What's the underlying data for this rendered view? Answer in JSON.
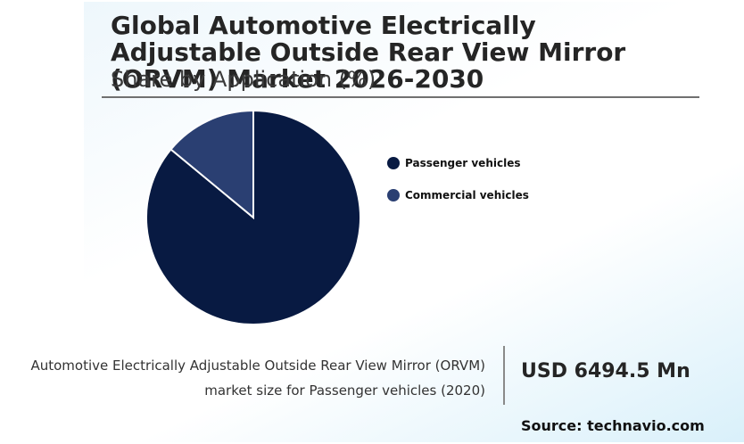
{
  "header": {
    "title": "Global Automotive Electrically Adjustable Outside Rear View Mirror (ORVM) Market 2026-2030",
    "subtitle": "Share by Application (%)"
  },
  "chart_data": {
    "type": "pie",
    "title": "Share by Application (%)",
    "categories": [
      "Passenger vehicles",
      "Commercial vehicles"
    ],
    "values": [
      86,
      14
    ],
    "colors": [
      "#081a42",
      "#2a3f72"
    ],
    "legend_position": "right"
  },
  "highlight": {
    "caption_line1": "Automotive Electrically Adjustable Outside Rear View Mirror (ORVM)",
    "caption_line2": "market size for Passenger vehicles (2020)",
    "value": "USD 6494.5 Mn"
  },
  "footer": {
    "source": "Source: technavio.com"
  }
}
